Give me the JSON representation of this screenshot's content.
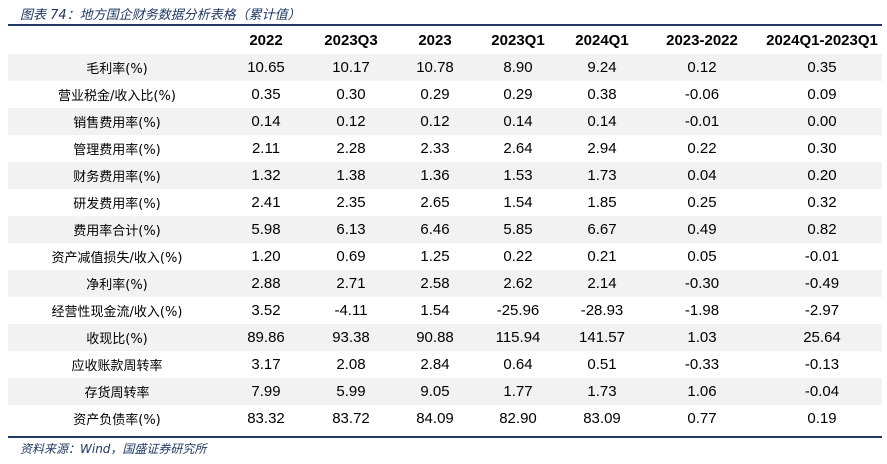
{
  "title": "图表 74：地方国企财务数据分析表格（累计值）",
  "table": {
    "headers": [
      "",
      "2022",
      "2023Q3",
      "2023",
      "2023Q1",
      "2024Q1",
      "2023-2022",
      "2024Q1-2023Q1"
    ],
    "rows": [
      {
        "label": "毛利率(%)",
        "values": [
          "10.65",
          "10.17",
          "10.78",
          "8.90",
          "9.24",
          "0.12",
          "0.35"
        ]
      },
      {
        "label": "营业税金/收入比(%)",
        "values": [
          "0.35",
          "0.30",
          "0.29",
          "0.29",
          "0.38",
          "-0.06",
          "0.09"
        ]
      },
      {
        "label": "销售费用率(%)",
        "values": [
          "0.14",
          "0.12",
          "0.12",
          "0.14",
          "0.14",
          "-0.01",
          "0.00"
        ]
      },
      {
        "label": "管理费用率(%)",
        "values": [
          "2.11",
          "2.28",
          "2.33",
          "2.64",
          "2.94",
          "0.22",
          "0.30"
        ]
      },
      {
        "label": "财务费用率(%)",
        "values": [
          "1.32",
          "1.38",
          "1.36",
          "1.53",
          "1.73",
          "0.04",
          "0.20"
        ]
      },
      {
        "label": "研发费用率(%)",
        "values": [
          "2.41",
          "2.35",
          "2.65",
          "1.54",
          "1.85",
          "0.25",
          "0.32"
        ]
      },
      {
        "label": "费用率合计(%)",
        "values": [
          "5.98",
          "6.13",
          "6.46",
          "5.85",
          "6.67",
          "0.49",
          "0.82"
        ]
      },
      {
        "label": "资产减值损失/收入(%)",
        "values": [
          "1.20",
          "0.69",
          "1.25",
          "0.22",
          "0.21",
          "0.05",
          "-0.01"
        ]
      },
      {
        "label": "净利率(%)",
        "values": [
          "2.88",
          "2.71",
          "2.58",
          "2.62",
          "2.14",
          "-0.30",
          "-0.49"
        ]
      },
      {
        "label": "经营性现金流/收入(%)",
        "values": [
          "3.52",
          "-4.11",
          "1.54",
          "-25.96",
          "-28.93",
          "-1.98",
          "-2.97"
        ]
      },
      {
        "label": "收现比(%)",
        "values": [
          "89.86",
          "93.38",
          "90.88",
          "115.94",
          "141.57",
          "1.03",
          "25.64"
        ]
      },
      {
        "label": "应收账款周转率",
        "values": [
          "3.17",
          "2.08",
          "2.84",
          "0.64",
          "0.51",
          "-0.33",
          "-0.13"
        ]
      },
      {
        "label": "存货周转率",
        "values": [
          "7.99",
          "5.99",
          "9.05",
          "1.77",
          "1.73",
          "1.06",
          "-0.04"
        ]
      },
      {
        "label": "资产负债率(%)",
        "values": [
          "83.32",
          "83.72",
          "84.09",
          "82.90",
          "83.09",
          "0.77",
          "0.19"
        ]
      }
    ]
  },
  "source": "资料来源：Wind，国盛证券研究所",
  "colors": {
    "accent": "#1f3864",
    "stripe": "#f2f2f2"
  }
}
